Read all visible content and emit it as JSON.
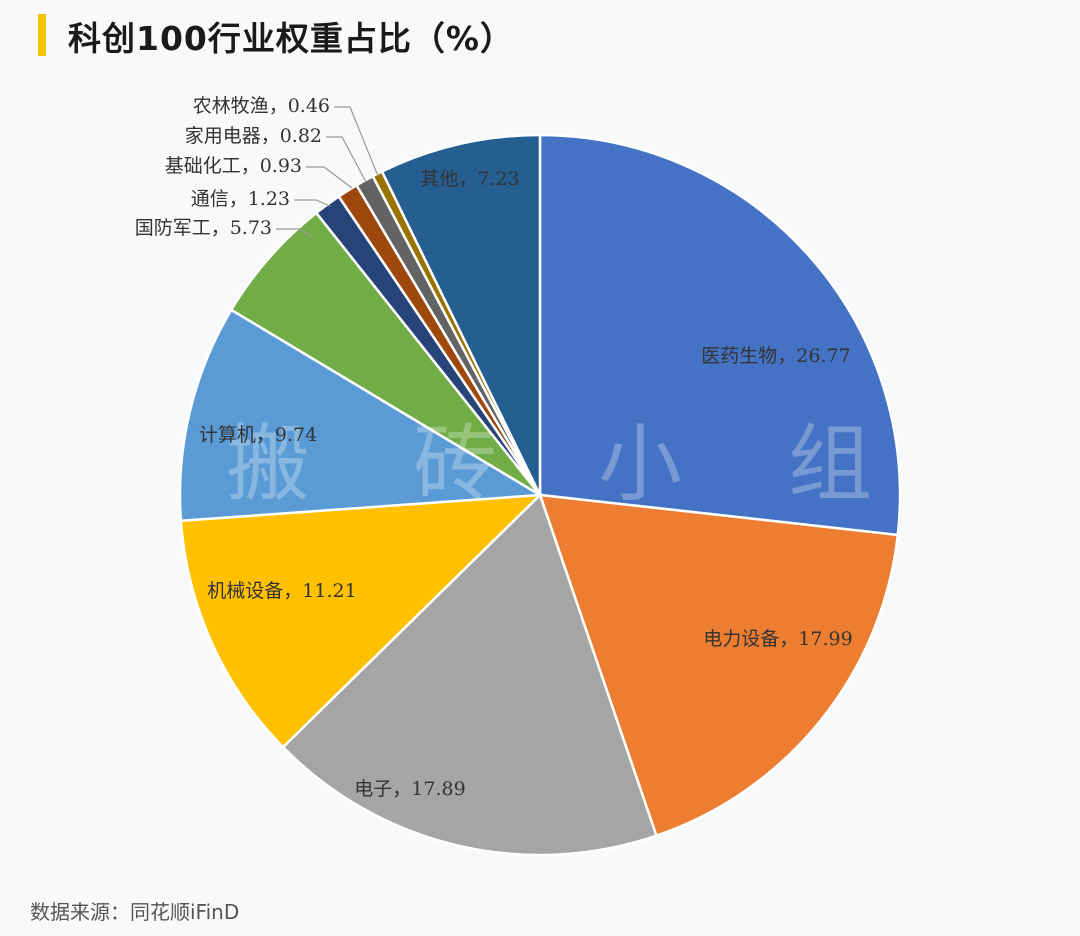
{
  "title": "科创100行业权重占比（%）",
  "source": "数据来源：同花顺iFinD",
  "watermark": [
    "搬",
    "砖",
    "小",
    "组"
  ],
  "chart_data": {
    "type": "pie",
    "title": "科创100行业权重占比（%）",
    "start_angle": "12 o'clock",
    "direction": "clockwise",
    "slices": [
      {
        "label": "医药生物",
        "value": 26.77,
        "display": "医药生物，26.77",
        "color": "#4472c4"
      },
      {
        "label": "电力设备",
        "value": 17.99,
        "display": "电力设备，17.99",
        "color": "#ed7d31"
      },
      {
        "label": "电子",
        "value": 17.89,
        "display": "电子，17.89",
        "color": "#a5a5a5"
      },
      {
        "label": "机械设备",
        "value": 11.21,
        "display": "机械设备，11.21",
        "color": "#ffc000"
      },
      {
        "label": "计算机",
        "value": 9.74,
        "display": "计算机，9.74",
        "color": "#5b9bd5"
      },
      {
        "label": "国防军工",
        "value": 5.73,
        "display": "国防军工，5.73",
        "color": "#70ad47"
      },
      {
        "label": "通信",
        "value": 1.23,
        "display": "通信，1.23",
        "color": "#264478"
      },
      {
        "label": "基础化工",
        "value": 0.93,
        "display": "基础化工，0.93",
        "color": "#9e480e"
      },
      {
        "label": "家用电器",
        "value": 0.82,
        "display": "家用电器，0.82",
        "color": "#636363"
      },
      {
        "label": "农林牧渔",
        "value": 0.46,
        "display": "农林牧渔，0.46",
        "color": "#997300"
      },
      {
        "label": "其他",
        "value": 7.23,
        "display": "其他，7.23",
        "color": "#255e91"
      }
    ]
  }
}
